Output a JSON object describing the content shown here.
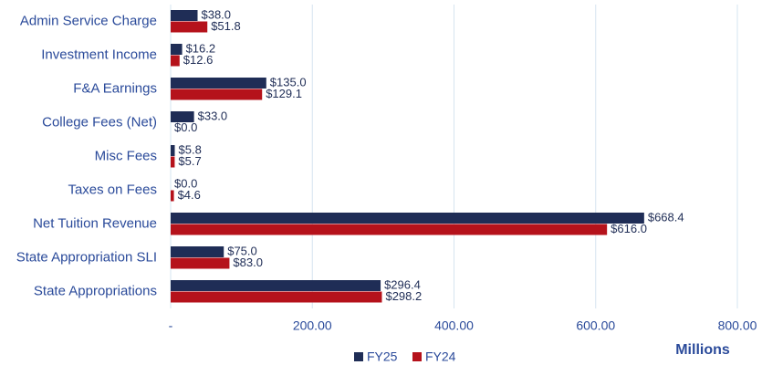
{
  "chart_data": {
    "type": "hbar",
    "categories": [
      "Admin Service Charge",
      "Investment Income",
      "F&A Earnings",
      "College Fees (Net)",
      "Misc Fees",
      "Taxes on Fees",
      "Net Tuition Revenue",
      "State Appropriation SLI",
      "State Appropriations"
    ],
    "series": [
      {
        "name": "FY25",
        "color": "#1f2d56",
        "values": [
          38.0,
          16.2,
          135.0,
          33.0,
          5.8,
          0.0,
          668.4,
          75.0,
          296.4
        ],
        "value_labels": [
          "$38.0",
          "$16.2",
          "$135.0",
          "$33.0",
          "$5.8",
          "$0.0",
          "$668.4",
          "$75.0",
          "$296.4"
        ]
      },
      {
        "name": "FY24",
        "color": "#b5121b",
        "values": [
          51.8,
          12.6,
          129.1,
          0.0,
          5.7,
          4.6,
          616.0,
          83.0,
          298.2
        ],
        "value_labels": [
          "$51.8",
          "$12.6",
          "$129.1",
          "$0.0",
          "$5.7",
          "$4.6",
          "$616.0",
          "$83.0",
          "$298.2"
        ]
      }
    ],
    "xlim": [
      0,
      800
    ],
    "xticks": [
      {
        "value": 0,
        "label": "-"
      },
      {
        "value": 200,
        "label": "200.00"
      },
      {
        "value": 400,
        "label": "400.00"
      },
      {
        "value": 600,
        "label": "600.00"
      },
      {
        "value": 800,
        "label": "800.00"
      }
    ],
    "xlabel": "Millions",
    "grid": true,
    "legend": "bottom"
  }
}
